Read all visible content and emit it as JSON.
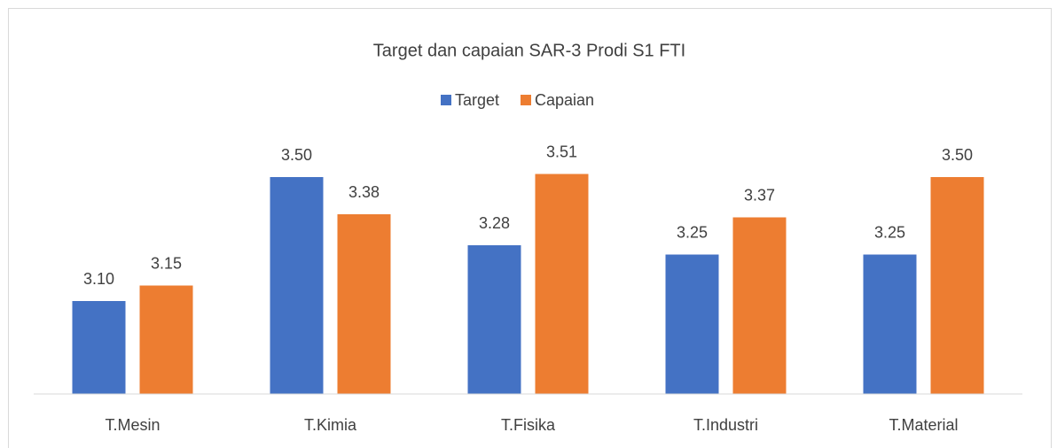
{
  "chart_data": {
    "type": "bar",
    "title": "Target dan capaian SAR-3 Prodi S1 FTI",
    "categories": [
      "T.Mesin",
      "T.Kimia",
      "T.Fisika",
      "T.Industri",
      "T.Material"
    ],
    "series": [
      {
        "name": "Target",
        "color": "#4472c4",
        "values": [
          3.1,
          3.5,
          3.28,
          3.25,
          3.25
        ],
        "value_labels": [
          "3.10",
          "3.50",
          "3.28",
          "3.25",
          "3.25"
        ]
      },
      {
        "name": "Capaian",
        "color": "#ed7d31",
        "values": [
          3.15,
          3.38,
          3.51,
          3.37,
          3.5
        ],
        "value_labels": [
          "3.15",
          "3.38",
          "3.51",
          "3.37",
          "3.50"
        ]
      }
    ],
    "ylim": [
      2.8,
      3.6
    ],
    "legend": "top"
  }
}
